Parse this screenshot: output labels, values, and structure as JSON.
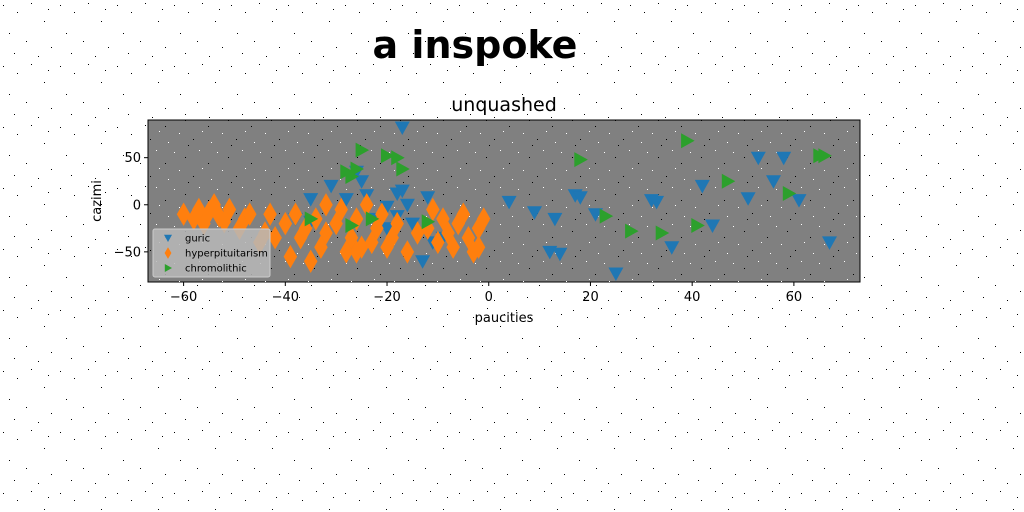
{
  "figure": {
    "suptitle": "a inspoke"
  },
  "chart_data": {
    "type": "scatter",
    "title": "unquashed",
    "xlabel": "paucities",
    "ylabel": "cazimi",
    "xlim": [
      -67,
      73
    ],
    "ylim": [
      -82,
      90
    ],
    "xticks": [
      -60,
      -40,
      -20,
      0,
      20,
      40,
      60
    ],
    "yticks": [
      -50,
      0,
      50
    ],
    "grid": false,
    "background": "#808080",
    "legend_position": "lower-left",
    "series": [
      {
        "name": "guric",
        "marker": "triangle-down",
        "color": "#1f77b4",
        "points": [
          [
            -17,
            82
          ],
          [
            -35,
            6
          ],
          [
            -31,
            20
          ],
          [
            -28,
            6
          ],
          [
            -26,
            35
          ],
          [
            -24,
            10
          ],
          [
            -22,
            -15
          ],
          [
            -20,
            -2
          ],
          [
            -18,
            12
          ],
          [
            -17,
            15
          ],
          [
            -18,
            -12
          ],
          [
            -16,
            0
          ],
          [
            -15,
            -20
          ],
          [
            -13,
            -60
          ],
          [
            -12,
            8
          ],
          [
            -11,
            -40
          ],
          [
            -20,
            -25
          ],
          [
            -35,
            -18
          ],
          [
            4,
            3
          ],
          [
            9,
            -8
          ],
          [
            12,
            -50
          ],
          [
            13,
            -15
          ],
          [
            14,
            -52
          ],
          [
            17,
            10
          ],
          [
            18,
            8
          ],
          [
            21,
            -10
          ],
          [
            25,
            -73
          ],
          [
            32,
            5
          ],
          [
            33,
            3
          ],
          [
            36,
            -45
          ],
          [
            42,
            20
          ],
          [
            44,
            -22
          ],
          [
            51,
            7
          ],
          [
            53,
            50
          ],
          [
            56,
            25
          ],
          [
            58,
            50
          ],
          [
            61,
            5
          ],
          [
            67,
            -40
          ],
          [
            -38,
            -15
          ],
          [
            -25,
            25
          ],
          [
            -9,
            -35
          ]
        ]
      },
      {
        "name": "hyperpituitarism",
        "marker": "diamond",
        "color": "#ff7f0e",
        "points": [
          [
            -60,
            -10
          ],
          [
            -58,
            -15
          ],
          [
            -57,
            -5
          ],
          [
            -56,
            -20
          ],
          [
            -55,
            -8
          ],
          [
            -54,
            0
          ],
          [
            -53,
            -12
          ],
          [
            -52,
            -18
          ],
          [
            -51,
            -5
          ],
          [
            -49,
            -25
          ],
          [
            -48,
            -15
          ],
          [
            -47,
            -10
          ],
          [
            -45,
            -40
          ],
          [
            -44,
            -30
          ],
          [
            -42,
            -35
          ],
          [
            -40,
            -20
          ],
          [
            -39,
            -55
          ],
          [
            -38,
            -10
          ],
          [
            -37,
            -35
          ],
          [
            -36,
            -25
          ],
          [
            -35,
            -60
          ],
          [
            -34,
            -15
          ],
          [
            -33,
            -45
          ],
          [
            -32,
            -30
          ],
          [
            -32,
            0
          ],
          [
            -30,
            -20
          ],
          [
            -29,
            -5
          ],
          [
            -28,
            -50
          ],
          [
            -27,
            -35
          ],
          [
            -26,
            -15
          ],
          [
            -25,
            -45
          ],
          [
            -24,
            0
          ],
          [
            -23,
            -40
          ],
          [
            -22,
            -25
          ],
          [
            -21,
            -10
          ],
          [
            -20,
            -45
          ],
          [
            -19,
            -35
          ],
          [
            -18,
            -20
          ],
          [
            -16,
            -50
          ],
          [
            -14,
            -30
          ],
          [
            -12,
            -25
          ],
          [
            -11,
            -5
          ],
          [
            -10,
            -40
          ],
          [
            -9,
            -15
          ],
          [
            -8,
            -30
          ],
          [
            -7,
            -45
          ],
          [
            -6,
            -20
          ],
          [
            -5,
            -10
          ],
          [
            -4,
            -35
          ],
          [
            -3,
            -50
          ],
          [
            -2,
            -25
          ],
          [
            -2,
            -45
          ],
          [
            -1,
            -15
          ],
          [
            -26,
            -50
          ],
          [
            -43,
            -10
          ]
        ]
      },
      {
        "name": "chromolithic",
        "marker": "triangle-right",
        "color": "#2ca02c",
        "points": [
          [
            -28,
            35
          ],
          [
            -27,
            30
          ],
          [
            -26,
            38
          ],
          [
            -25,
            58
          ],
          [
            -20,
            52
          ],
          [
            -18,
            50
          ],
          [
            -17,
            38
          ],
          [
            -35,
            -15
          ],
          [
            -27,
            -22
          ],
          [
            -23,
            -15
          ],
          [
            -12,
            -18
          ],
          [
            18,
            48
          ],
          [
            23,
            -12
          ],
          [
            28,
            -28
          ],
          [
            34,
            -30
          ],
          [
            39,
            68
          ],
          [
            41,
            -22
          ],
          [
            47,
            25
          ],
          [
            59,
            12
          ],
          [
            65,
            52
          ],
          [
            66,
            52
          ]
        ]
      }
    ]
  }
}
